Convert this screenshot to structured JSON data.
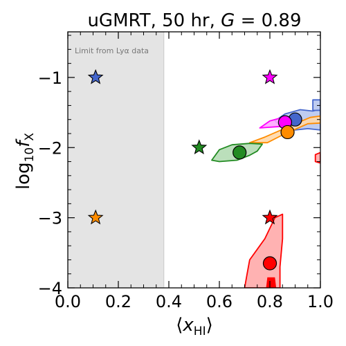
{
  "chart_data": {
    "type": "scatter",
    "title_prefix": "uGMRT, 50 hr, ",
    "title_var": "G",
    "title_suffix": " = 0.89",
    "xlabel": {
      "open": "⟨",
      "main": "x",
      "sub": "HI",
      "close": "⟩"
    },
    "ylabel": {
      "main": "log",
      "sub": "10",
      "var": "f",
      "varsub": "X"
    },
    "xlim": [
      0.0,
      1.0
    ],
    "ylim": [
      -4.0,
      -0.35
    ],
    "xticks": [
      0.0,
      0.2,
      0.4,
      0.6,
      0.8,
      1.0
    ],
    "xtick_labels": [
      "0.0",
      "0.2",
      "0.4",
      "0.6",
      "0.8",
      "1.0"
    ],
    "yticks": [
      -1,
      -2,
      -3,
      -4
    ],
    "ytick_labels": [
      "−1",
      "−2",
      "−3",
      "−4"
    ],
    "excluded_region": {
      "x_range": [
        0.0,
        0.38
      ],
      "label": "Limit from Lyα data"
    },
    "grid": false,
    "models": [
      {
        "color": "#4466cc",
        "fill": "#b8c6ee",
        "truth": {
          "x": 0.11,
          "y": -1.0
        },
        "recovered": {
          "x": 0.9,
          "y": -1.6
        }
      },
      {
        "color": "#ff00ff",
        "fill": "#ffaaff",
        "truth": {
          "x": 0.8,
          "y": -1.0
        },
        "recovered": {
          "x": 0.86,
          "y": -1.64
        }
      },
      {
        "color": "#ff8c00",
        "fill": "#ffd8a8",
        "truth": {
          "x": 0.11,
          "y": -3.0
        },
        "recovered": {
          "x": 0.87,
          "y": -1.78
        }
      },
      {
        "color": "#228b22",
        "fill": "#b4dcb4",
        "truth": {
          "x": 0.52,
          "y": -2.0
        },
        "recovered": {
          "x": 0.68,
          "y": -2.07
        }
      },
      {
        "color": "#ff0000",
        "fill": "#ffaaaa",
        "truth": {
          "x": 0.8,
          "y": -3.0
        },
        "recovered": {
          "x": 0.8,
          "y": -3.65
        }
      }
    ],
    "contours": [
      {
        "model": 0,
        "points": [
          [
            0.82,
            -1.62
          ],
          [
            0.86,
            -1.52
          ],
          [
            0.92,
            -1.46
          ],
          [
            0.97,
            -1.48
          ],
          [
            1.0,
            -1.45
          ],
          [
            1.0,
            -1.75
          ],
          [
            0.95,
            -1.73
          ],
          [
            0.9,
            -1.75
          ],
          [
            0.85,
            -1.72
          ]
        ]
      },
      {
        "model": 0,
        "points": [
          [
            0.97,
            -1.32
          ],
          [
            1.0,
            -1.32
          ],
          [
            1.0,
            -1.47
          ],
          [
            0.97,
            -1.47
          ]
        ]
      },
      {
        "model": 1,
        "points": [
          [
            0.76,
            -1.72
          ],
          [
            0.8,
            -1.62
          ],
          [
            0.86,
            -1.56
          ],
          [
            0.92,
            -1.58
          ],
          [
            0.92,
            -1.66
          ],
          [
            0.84,
            -1.7
          ]
        ]
      },
      {
        "model": 2,
        "points": [
          [
            0.72,
            -1.93
          ],
          [
            0.78,
            -1.85
          ],
          [
            0.85,
            -1.74
          ],
          [
            0.9,
            -1.66
          ],
          [
            0.96,
            -1.57
          ],
          [
            1.0,
            -1.55
          ],
          [
            1.0,
            -1.65
          ],
          [
            0.95,
            -1.66
          ],
          [
            0.9,
            -1.74
          ],
          [
            0.85,
            -1.82
          ],
          [
            0.79,
            -1.93
          ]
        ]
      },
      {
        "model": 3,
        "points": [
          [
            0.57,
            -2.18
          ],
          [
            0.6,
            -2.03
          ],
          [
            0.65,
            -1.96
          ],
          [
            0.72,
            -1.94
          ],
          [
            0.77,
            -1.95
          ],
          [
            0.75,
            -2.05
          ],
          [
            0.72,
            -2.11
          ],
          [
            0.67,
            -2.18
          ],
          [
            0.6,
            -2.2
          ]
        ]
      },
      {
        "model": 4,
        "points": [
          [
            0.7,
            -4.0
          ],
          [
            0.71,
            -3.8
          ],
          [
            0.72,
            -3.6
          ],
          [
            0.75,
            -3.45
          ],
          [
            0.78,
            -3.3
          ],
          [
            0.82,
            -3.0
          ],
          [
            0.85,
            -2.95
          ],
          [
            0.85,
            -3.3
          ],
          [
            0.84,
            -3.7
          ],
          [
            0.84,
            -4.0
          ]
        ]
      },
      {
        "model": 4,
        "points": [
          [
            0.98,
            -2.1
          ],
          [
            1.0,
            -2.07
          ],
          [
            1.0,
            -2.22
          ],
          [
            0.98,
            -2.2
          ]
        ]
      }
    ]
  }
}
